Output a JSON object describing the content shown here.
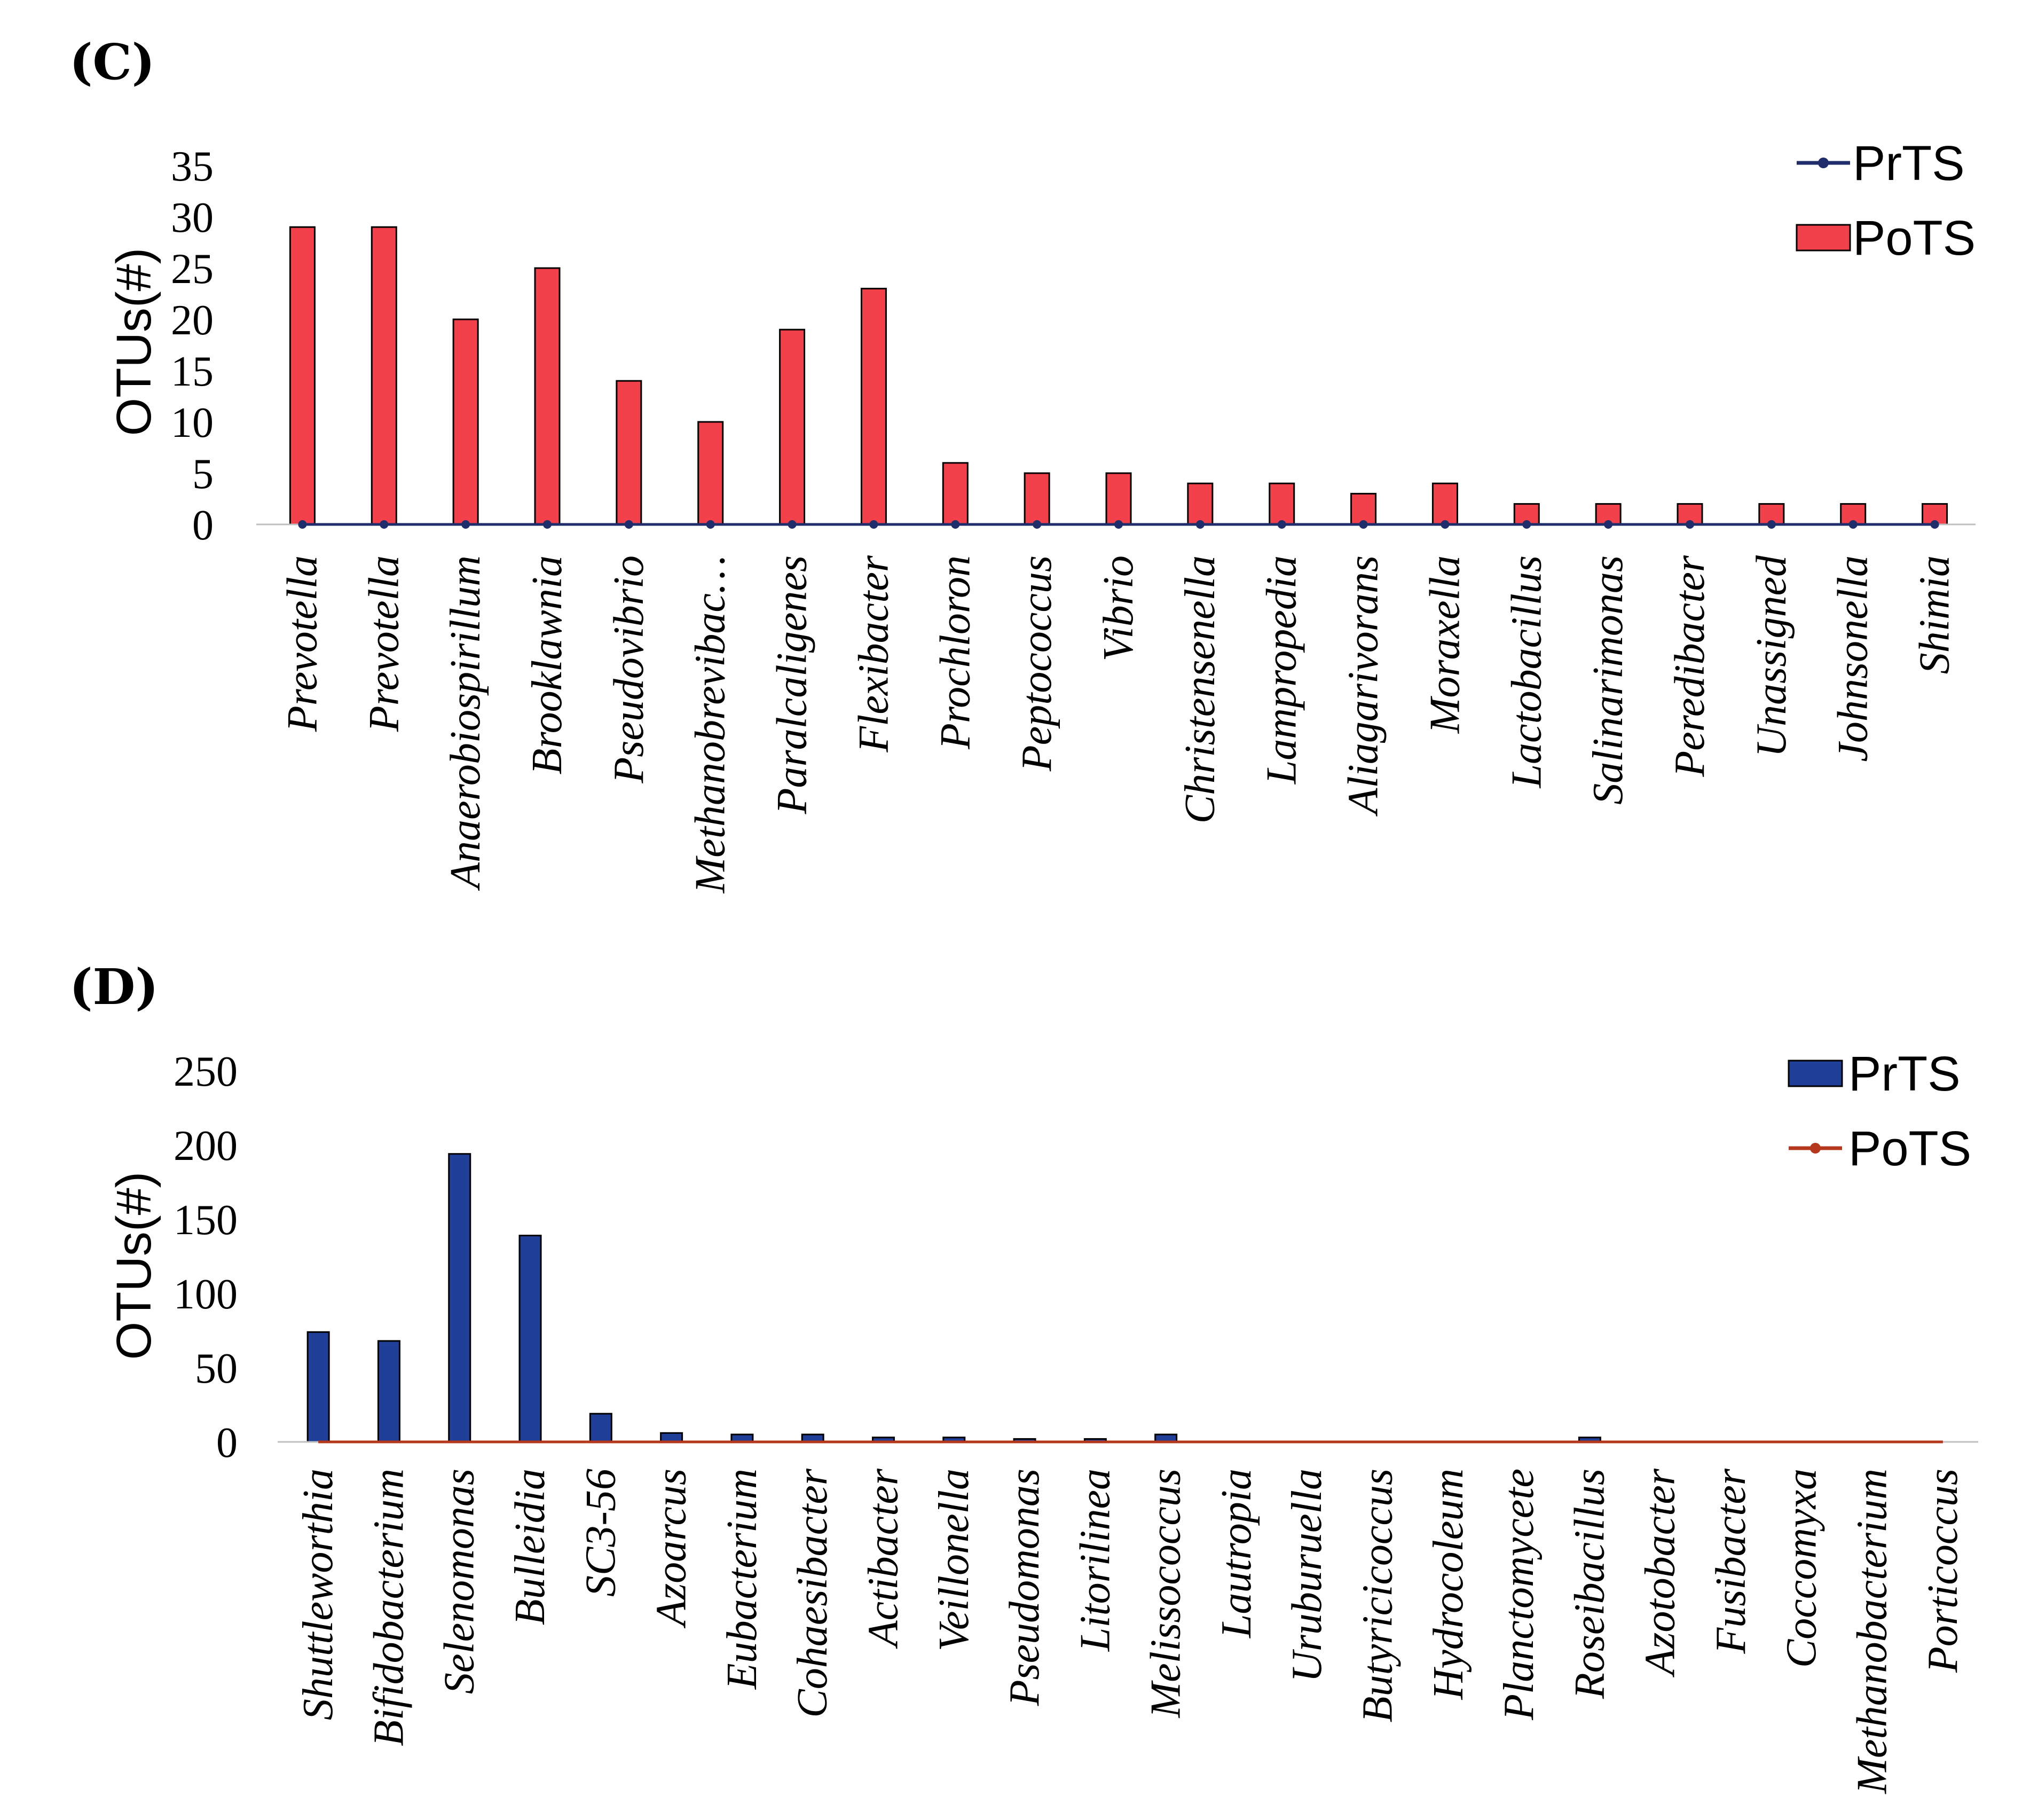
{
  "chart_data": [
    {
      "type": "bar",
      "panel_label": "(C)",
      "ylabel": "OTUs(#)",
      "ylim": [
        0,
        35
      ],
      "yticks": [
        "0",
        "5",
        "10",
        "15",
        "20",
        "25",
        "30",
        "35"
      ],
      "legend_position": "top-right",
      "categories": [
        "Prevotella",
        "Prevotella",
        "Anaerobiospirillum",
        "Brooklawnia",
        "Pseudovibrio",
        "Methanobrevibac…",
        "Paralcaligenes",
        "Flexibacter",
        "Prochloron",
        "Peptococcus",
        "Vibrio",
        "Christensenella",
        "Lampropedia",
        "Aliagarivorans",
        "Moraxella",
        "Lactobacillus",
        "Salinarimonas",
        "Peredibacter",
        "Unassigned",
        "Johnsonella",
        "Shimia"
      ],
      "series": [
        {
          "name": "PrTS",
          "kind": "line",
          "color": "#1f2d6b",
          "values": [
            0,
            0,
            0,
            0,
            0,
            0,
            0,
            0,
            0,
            0,
            0,
            0,
            0,
            0,
            0,
            0,
            0,
            0,
            0,
            0,
            0
          ]
        },
        {
          "name": "PoTS",
          "kind": "bar",
          "color": "#f2414a",
          "values": [
            29,
            29,
            20,
            25,
            14,
            10,
            19,
            23,
            6,
            5,
            5,
            4,
            4,
            3,
            4,
            2,
            2,
            2,
            2,
            2,
            2
          ]
        }
      ]
    },
    {
      "type": "bar",
      "panel_label": "(D)",
      "ylabel": "OTUs(#)",
      "ylim": [
        0,
        250
      ],
      "yticks": [
        "0",
        "50",
        "100",
        "150",
        "200",
        "250"
      ],
      "legend_position": "top-right",
      "categories": [
        "Shuttleworthia",
        "Bifidobacterium",
        "Selenomonas",
        "Bulleidia",
        "SC3-56",
        "Azoarcus",
        "Eubacterium",
        "Cohaesibacter",
        "Actibacter",
        "Veillonella",
        "Pseudomonas",
        "Litorilinea",
        "Melissococcus",
        "Lautropia",
        "Uruburuella",
        "Butyricicoccus",
        "Hydrocoleum",
        "Planctomycete",
        "Roseibacillus",
        "Azotobacter",
        "Fusibacter",
        "Coccomyxa",
        "Methanobacterium",
        "Porticoccus"
      ],
      "series": [
        {
          "name": "PrTS",
          "kind": "bar",
          "color": "#1f3f99",
          "values": [
            74,
            68,
            194,
            139,
            19,
            6,
            5,
            5,
            3,
            3,
            2,
            2,
            5,
            0,
            0,
            0,
            0,
            0,
            3,
            0,
            0,
            0,
            0,
            0
          ]
        },
        {
          "name": "PoTS",
          "kind": "line",
          "color": "#b5381c",
          "values": [
            0,
            0,
            0,
            0,
            0,
            0,
            0,
            0,
            0,
            0,
            0,
            0,
            0,
            0,
            0,
            0,
            0,
            0,
            0,
            0,
            0,
            0,
            0,
            0
          ]
        }
      ]
    }
  ]
}
